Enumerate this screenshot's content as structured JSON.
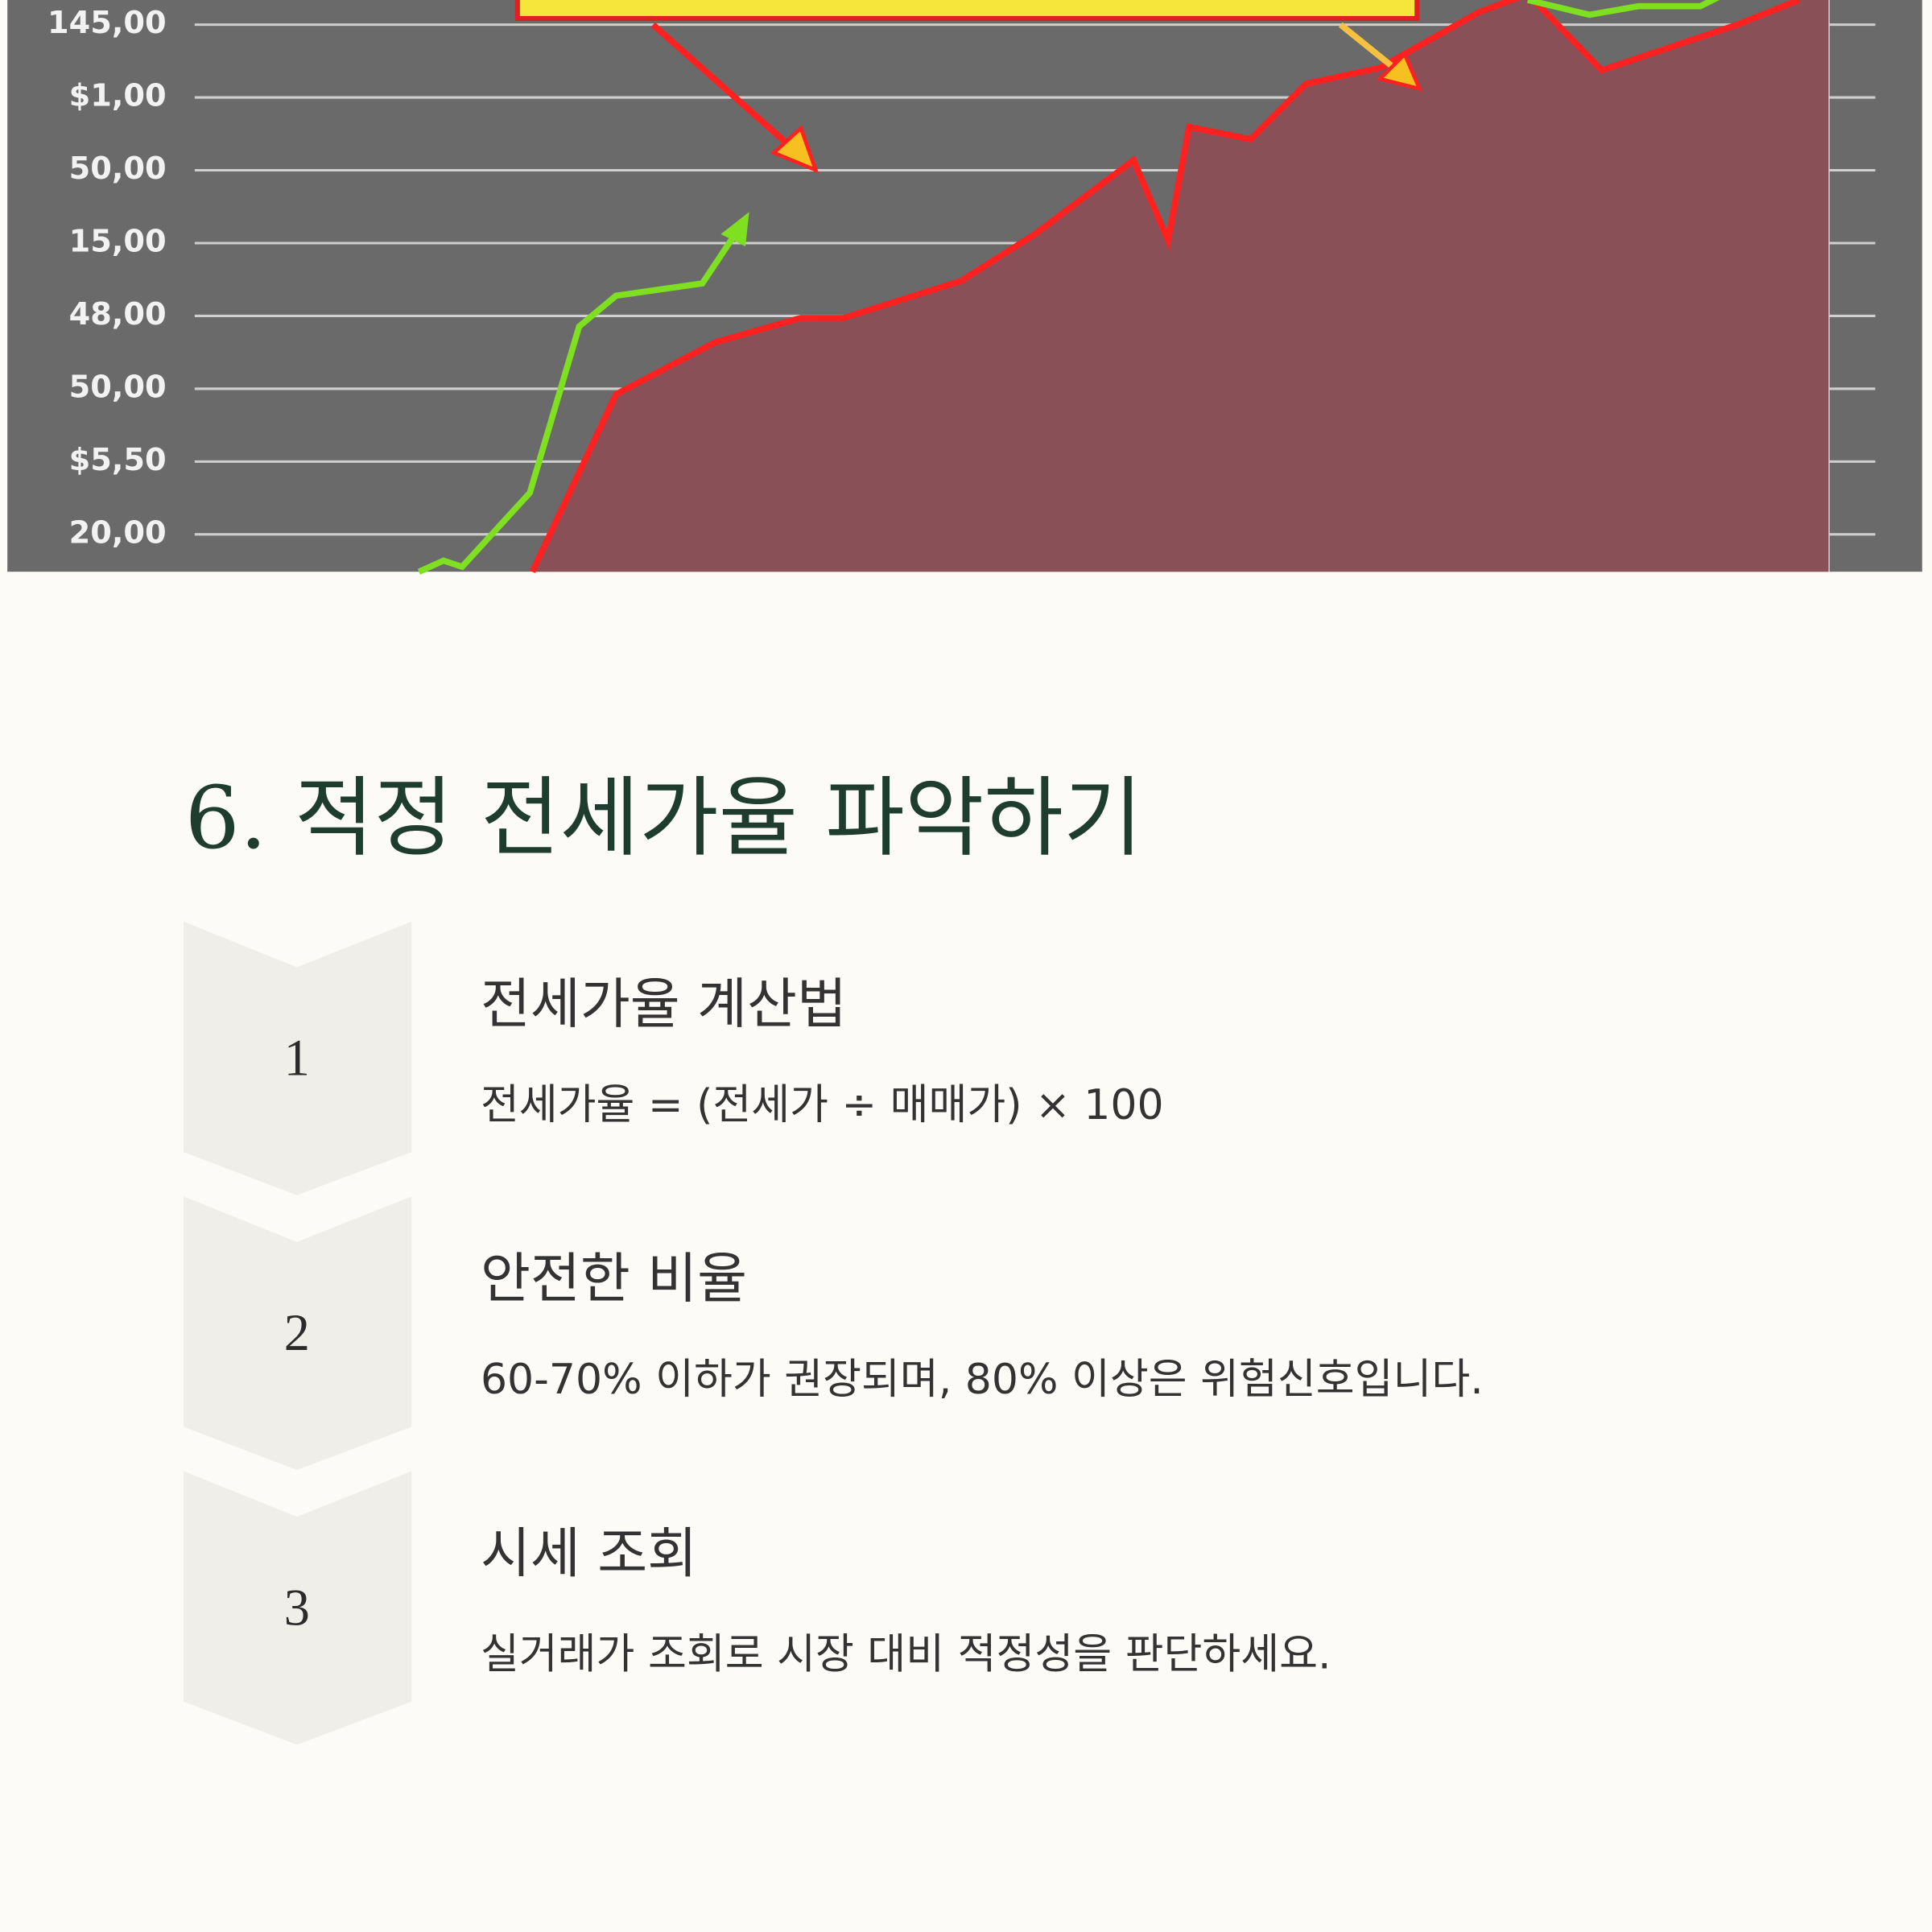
{
  "image": {
    "axis_labels": [
      "145,00",
      "$1,00",
      "50,00",
      "15,00",
      "48,00",
      "50,00",
      "$5,50",
      "20,00"
    ]
  },
  "section": {
    "title": "6. 적정 전세가율 파악하기",
    "steps": [
      {
        "number": 1,
        "heading": "전세가율 계산법",
        "text": "전세가율 = (전세가 ÷ 매매가) × 100"
      },
      {
        "number": 2,
        "heading": "안전한 비율",
        "text": "60-70% 이하가 권장되며, 80% 이상은 위험신호입니다."
      },
      {
        "number": 3,
        "heading": "시세 조회",
        "text": "실거래가 조회로 시장 대비 적정성을 판단하세요."
      }
    ]
  }
}
